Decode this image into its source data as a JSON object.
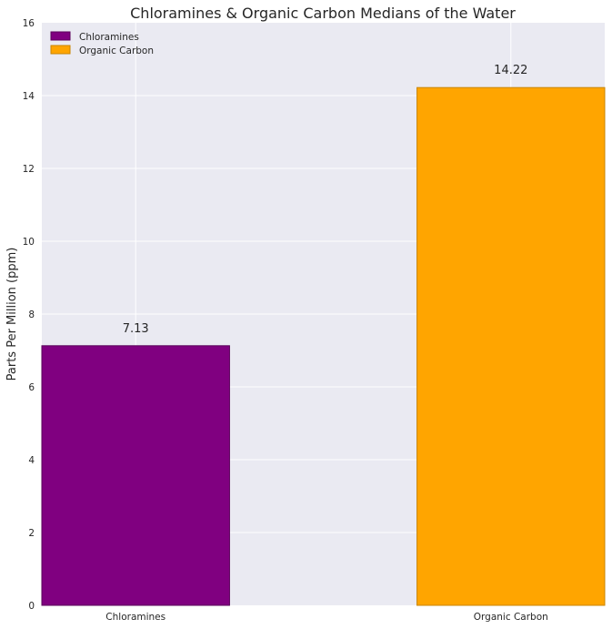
{
  "chart_data": {
    "type": "bar",
    "title": "Chloramines & Organic Carbon Medians of the Water",
    "xlabel": "",
    "ylabel": "Parts Per Million (ppm)",
    "categories": [
      "Chloramines",
      "Organic Carbon"
    ],
    "values": [
      7.13,
      14.22
    ],
    "value_labels": [
      "7.13",
      "14.22"
    ],
    "colors": [
      "#800080",
      "#ffa500"
    ],
    "ylim": [
      0,
      16
    ],
    "yticks": [
      0,
      2,
      4,
      6,
      8,
      10,
      12,
      14,
      16
    ],
    "grid": true,
    "legend": {
      "placement": "top-left",
      "entries": [
        "Chloramines",
        "Organic Carbon"
      ]
    }
  }
}
